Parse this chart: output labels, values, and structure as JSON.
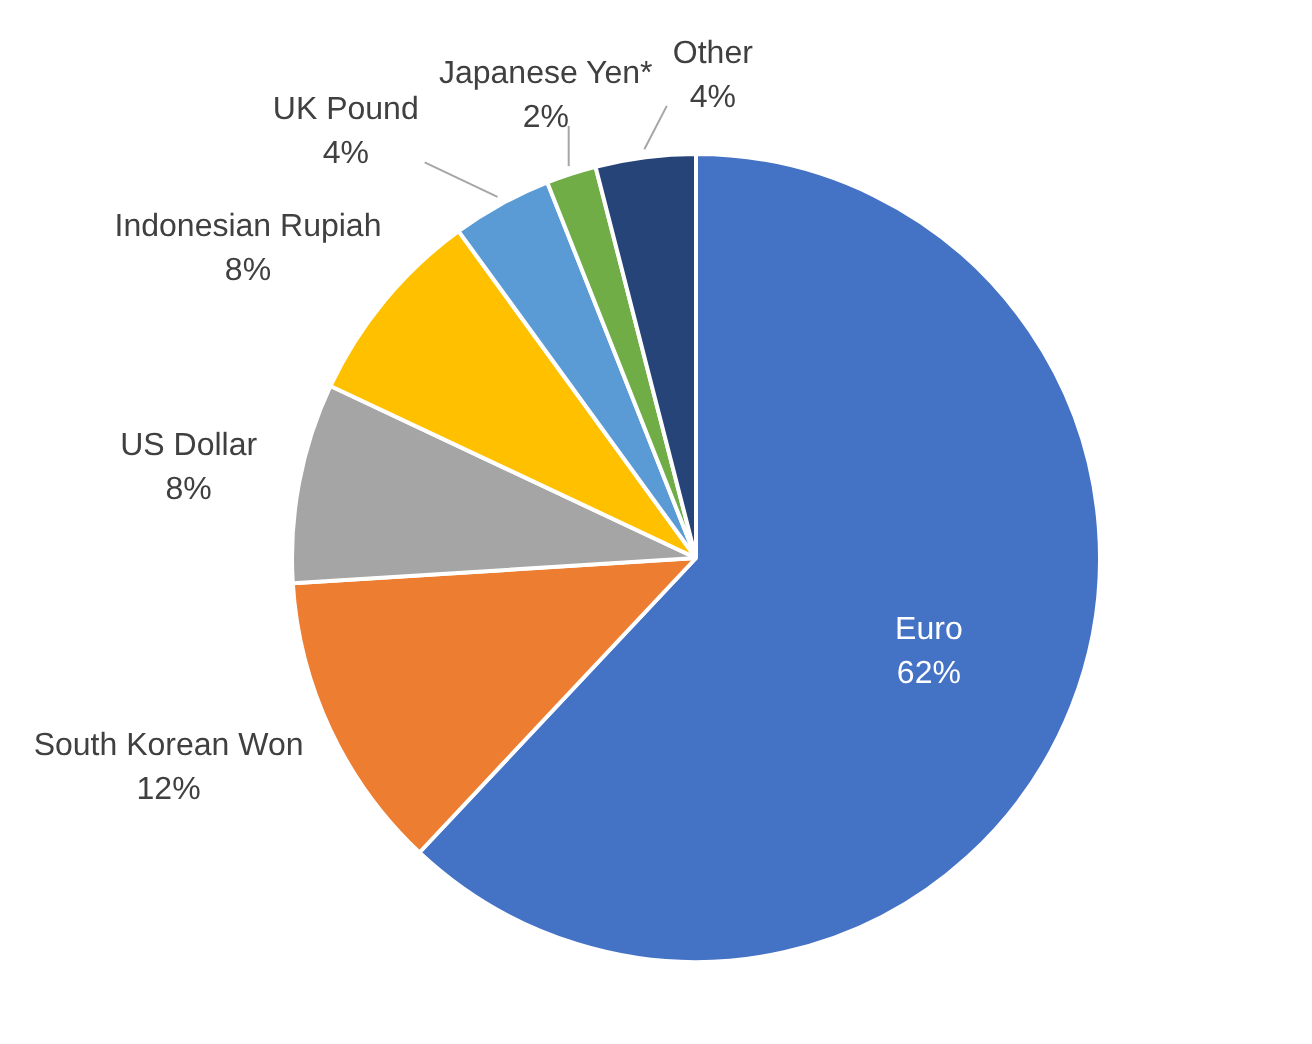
{
  "chart_data": {
    "type": "pie",
    "categories": [
      "Euro",
      "South Korean Won",
      "US Dollar",
      "Indonesian Rupiah",
      "UK Pound",
      "Japanese Yen*",
      "Other"
    ],
    "values": [
      62,
      12,
      8,
      8,
      4,
      2,
      4
    ],
    "colors": [
      "#4472c4",
      "#ed7d31",
      "#a5a5a5",
      "#ffc000",
      "#5b9bd5",
      "#70ad47",
      "#264478"
    ],
    "value_labels": [
      "62%",
      "12%",
      "8%",
      "8%",
      "4%",
      "2%",
      "4%"
    ],
    "legend": false
  }
}
